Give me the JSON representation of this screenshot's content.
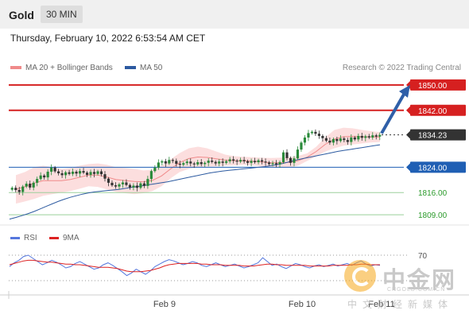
{
  "header": {
    "title": "Gold",
    "timeframe": "30 MIN"
  },
  "datetime": "Thursday, February 10, 2022 6:53:54 AM CET",
  "legend": {
    "ma20": {
      "label": "MA 20 + Bollinger Bands",
      "color": "#f08a8a"
    },
    "ma50": {
      "label": "MA 50",
      "color": "#2c5aa0"
    }
  },
  "credit": "Research © 2022 Trading Central",
  "rsi_legend": {
    "rsi": {
      "label": "RSI",
      "color": "#5577dd"
    },
    "ma9": {
      "label": "9MA",
      "color": "#dd2222"
    }
  },
  "watermark": {
    "title": "中金网",
    "url": "CNGOLD.COM.CN",
    "subtitle": "中文财经新媒体"
  },
  "chart_data": [
    {
      "type": "line",
      "title": "Gold 30 MIN",
      "x_ticks": [
        "Feb 9",
        "Feb 10",
        "Feb 11"
      ],
      "ylim": [
        1806,
        1853
      ],
      "levels": [
        {
          "label": "1850.00",
          "value": 1850.0,
          "kind": "resistance",
          "color": "#d62020"
        },
        {
          "label": "1842.00",
          "value": 1842.0,
          "kind": "resistance",
          "color": "#d62020"
        },
        {
          "label": "1834.23",
          "value": 1834.23,
          "kind": "last",
          "color": "#333333"
        },
        {
          "label": "1824.00",
          "value": 1824.0,
          "kind": "pivot",
          "color": "#1f5fb4"
        },
        {
          "label": "1816.00",
          "value": 1816.0,
          "kind": "support",
          "color": "#2a9a2a"
        },
        {
          "label": "1809.00",
          "value": 1809.0,
          "kind": "support",
          "color": "#2a9a2a"
        }
      ],
      "close_series": [
        1817.5,
        1816.8,
        1816.2,
        1817.9,
        1818.8,
        1817.6,
        1819.1,
        1820.3,
        1821.4,
        1820.8,
        1822.6,
        1823.9,
        1822.7,
        1822.1,
        1821.5,
        1822.4,
        1821.9,
        1822.6,
        1822.0,
        1822.8,
        1822.3,
        1821.6,
        1822.5,
        1821.9,
        1822.7,
        1821.8,
        1820.4,
        1819.1,
        1818.3,
        1817.9,
        1818.6,
        1819.2,
        1818.4,
        1817.6,
        1818.2,
        1817.5,
        1818.9,
        1818.1,
        1820.3,
        1822.8,
        1823.9,
        1825.5,
        1825.9,
        1825.2,
        1826.3,
        1826.0,
        1825.1,
        1824.8,
        1825.3,
        1825.8,
        1825.2,
        1824.9,
        1825.6,
        1825.0,
        1825.4,
        1826.1,
        1825.7,
        1825.2,
        1825.8,
        1825.4,
        1825.9,
        1826.5,
        1826.1,
        1825.8,
        1826.3,
        1825.9,
        1825.4,
        1826.0,
        1825.6,
        1826.2,
        1825.8,
        1825.5,
        1825.0,
        1825.3,
        1824.9,
        1825.6,
        1828.7,
        1826.9,
        1825.4,
        1826.8,
        1829.6,
        1831.8,
        1833.4,
        1834.8,
        1835.2,
        1834.6,
        1833.9,
        1833.2,
        1832.4,
        1831.8,
        1832.9,
        1832.3,
        1833.1,
        1832.6,
        1832.0,
        1833.4,
        1832.8,
        1833.9,
        1833.3,
        1833.8,
        1833.4,
        1834.1,
        1833.7,
        1834.23
      ],
      "ma50_series": [
        1807.6,
        1808.1,
        1808.7,
        1809.3,
        1810.0,
        1810.8,
        1811.6,
        1812.4,
        1813.2,
        1813.9,
        1814.5,
        1815.0,
        1815.5,
        1815.9,
        1816.2,
        1816.4,
        1816.6,
        1816.8,
        1817.0,
        1817.3,
        1817.6,
        1817.9,
        1818.2,
        1818.5,
        1818.8,
        1819.1,
        1819.4,
        1819.8,
        1820.2,
        1820.6,
        1821.0,
        1821.4,
        1821.8,
        1822.2,
        1822.5,
        1822.8,
        1823.0,
        1823.2,
        1823.4,
        1823.6,
        1823.8,
        1824.0,
        1824.2,
        1824.5,
        1824.8,
        1825.2,
        1825.7,
        1826.2,
        1826.6,
        1827.0,
        1827.4,
        1827.8,
        1828.2,
        1828.6,
        1829.0,
        1829.3,
        1829.6,
        1829.9,
        1830.2,
        1830.5,
        1830.8,
        1831.1
      ],
      "bollinger_upper": [
        1821.5,
        1822.5,
        1824.0,
        1824.5,
        1824.0,
        1823.5,
        1823.8,
        1824.5,
        1825.0,
        1825.2,
        1824.8,
        1824.0,
        1823.8,
        1823.5,
        1823.0,
        1823.2,
        1824.5,
        1826.5,
        1828.5,
        1830.0,
        1830.5,
        1830.0,
        1829.0,
        1828.0,
        1827.5,
        1827.3,
        1827.2,
        1827.0,
        1826.9,
        1827.0,
        1827.2,
        1827.6,
        1828.4,
        1830.5,
        1833.5,
        1835.8,
        1836.5,
        1836.3,
        1835.8,
        1835.4,
        1835.1
      ],
      "bollinger_lower": [
        1812.5,
        1813.2,
        1814.0,
        1815.0,
        1815.5,
        1816.0,
        1816.5,
        1817.2,
        1818.0,
        1817.8,
        1817.0,
        1816.2,
        1815.8,
        1815.5,
        1815.8,
        1816.5,
        1818.0,
        1820.5,
        1822.5,
        1823.5,
        1824.0,
        1824.2,
        1824.3,
        1824.5,
        1824.6,
        1824.8,
        1824.6,
        1824.3,
        1824.0,
        1823.8,
        1823.9,
        1824.5,
        1826.0,
        1827.5,
        1829.0,
        1830.0,
        1830.8,
        1831.2,
        1831.5,
        1831.8,
        1832.0
      ],
      "arrow": {
        "from_value": 1834.23,
        "to_value": 1850.0
      }
    },
    {
      "type": "line",
      "title": "RSI",
      "ylim": [
        15,
        90
      ],
      "reference_levels": [
        70,
        30
      ],
      "tick_labels": [
        "70"
      ],
      "series": [
        {
          "name": "RSI",
          "values": [
            52,
            58,
            62,
            68,
            70,
            65,
            60,
            55,
            58,
            62,
            59,
            55,
            50,
            52,
            57,
            60,
            56,
            52,
            48,
            50,
            55,
            58,
            54,
            49,
            44,
            38,
            42,
            48,
            44,
            40,
            45,
            52,
            56,
            60,
            63,
            61,
            58,
            55,
            57,
            60,
            58,
            54,
            52,
            55,
            58,
            55,
            52,
            54,
            56,
            53,
            50,
            52,
            55,
            58,
            66,
            60,
            54,
            56,
            52,
            49,
            53,
            57,
            55,
            52,
            50,
            53,
            55,
            52,
            54,
            56,
            53,
            55,
            57,
            54,
            58,
            61,
            56,
            53,
            55,
            54
          ]
        },
        {
          "name": "9MA",
          "values": [
            55,
            57,
            59,
            61,
            62,
            62,
            61,
            60,
            59,
            59,
            58,
            57,
            56,
            56,
            55,
            55,
            54,
            53,
            52,
            51,
            51,
            51,
            50,
            49,
            47,
            45,
            44,
            44,
            44,
            45,
            46,
            48,
            50,
            53,
            55,
            56,
            57,
            57,
            57,
            57,
            57,
            56,
            56,
            55,
            55,
            55,
            54,
            54,
            54,
            54,
            53,
            53,
            53,
            54,
            55,
            56,
            56,
            55,
            55,
            54,
            54,
            54,
            54,
            54,
            53,
            53,
            53,
            53,
            53,
            54,
            54,
            54,
            54,
            55,
            55,
            56,
            56,
            55,
            55,
            55
          ]
        }
      ]
    }
  ]
}
